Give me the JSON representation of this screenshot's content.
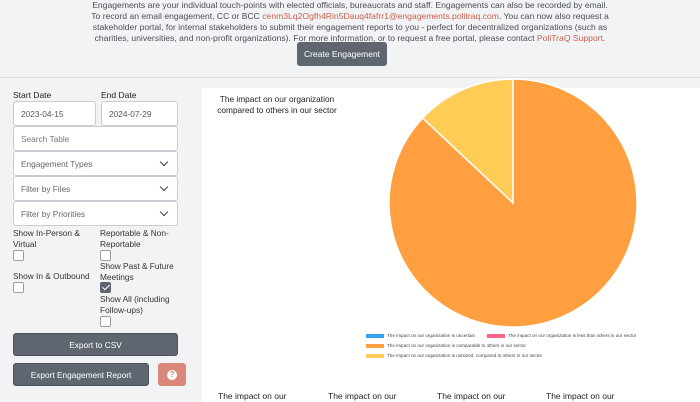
{
  "intro": {
    "line1": "Engagements are your individual touch-points with elected officials, bureaucrats and staff. Engagements can also be recorded by email.",
    "line2_pre": "To record an email engagement, CC or BCC ",
    "email": "cenm3Lq2Ogfh4Rin5Dauq4fafrr1@engagements.politraq.com",
    "line2_post": ". You can now also request a",
    "line3": "stakeholder portal, for internal stakeholders to submit their engagement reports to you - perfect for decentralized organizations (such as",
    "line4_pre": "charities, universities, and non-profit organizations). For more information, or to request a free portal, please contact ",
    "support_link": "PoliTraQ Support",
    "line4_post": "."
  },
  "create_button": "Create Engagement",
  "filters": {
    "start_date_label": "Start Date",
    "start_date_value": "2023-04-15",
    "end_date_label": "End Date",
    "end_date_value": "2024-07-29",
    "search_placeholder": "Search Table",
    "engagement_types": "Engagement Types",
    "filter_files": "Filter by Files",
    "filter_priorities": "Filter by Priorities"
  },
  "options": {
    "in_person": "Show In-Person & Virtual",
    "reportable": "Reportable & Non-Reportable",
    "in_outbound": "Show In & Outbound",
    "past_future": "Show Past & Future Meetings",
    "show_all": "Show All (including Follow-ups)"
  },
  "buttons": {
    "export_csv": "Export to CSV",
    "export_report": "Export Engagement Report",
    "help_icon": "?"
  },
  "chart_data": {
    "type": "pie",
    "title": "The impact on our organization compared to others in our sector",
    "series": [
      {
        "name": "The impact on our organization is uncertain",
        "value": 0,
        "color": "#36a2eb"
      },
      {
        "name": "The impact on our organization is less than others in our sector",
        "value": 0,
        "color": "#ff6384"
      },
      {
        "name": "The impact on our organization is comparable to others in our sector",
        "value": 87,
        "color": "#ff9f40"
      },
      {
        "name": "The impact on our organization is outsized, compared to others in our sector",
        "value": 13,
        "color": "#ffcd56"
      }
    ]
  },
  "bottom_titles": [
    "The impact on our",
    "The impact on our",
    "The impact on our",
    "The impact on our"
  ]
}
